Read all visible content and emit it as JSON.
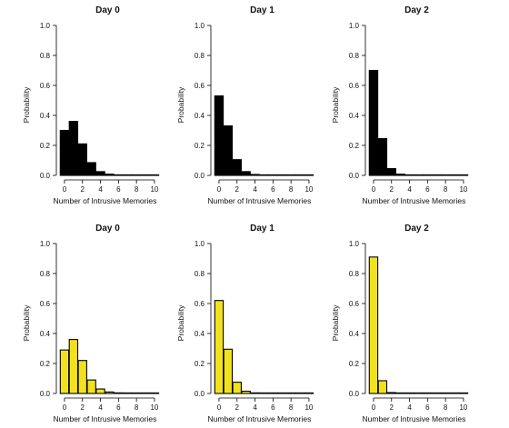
{
  "chart_data": [
    {
      "type": "bar",
      "title": "Day 0",
      "xlabel": "Number of Intrusive Memories",
      "ylabel": "Probability",
      "categories": [
        "0",
        "1",
        "2",
        "3",
        "4",
        "5",
        "6",
        "7",
        "8",
        "9",
        "10"
      ],
      "values": [
        0.3,
        0.36,
        0.21,
        0.085,
        0.025,
        0.008,
        0.003,
        0.002,
        0.001,
        0.001,
        0.001
      ],
      "x_ticks": [
        "0",
        "2",
        "4",
        "6",
        "8",
        "10"
      ],
      "y_ticks": [
        "0.0",
        "0.2",
        "0.4",
        "0.6",
        "0.8",
        "1.0"
      ],
      "ylim": [
        0,
        1
      ],
      "bar_color": "#000000"
    },
    {
      "type": "bar",
      "title": "Day 1",
      "xlabel": "Number of Intrusive Memories",
      "ylabel": "Probability",
      "categories": [
        "0",
        "1",
        "2",
        "3",
        "4",
        "5",
        "6",
        "7",
        "8",
        "9",
        "10"
      ],
      "values": [
        0.53,
        0.33,
        0.105,
        0.025,
        0.006,
        0.002,
        0.001,
        0.001,
        0.001,
        0.001,
        0.001
      ],
      "x_ticks": [
        "0",
        "2",
        "4",
        "6",
        "8",
        "10"
      ],
      "y_ticks": [
        "0.0",
        "0.2",
        "0.4",
        "0.6",
        "0.8",
        "1.0"
      ],
      "ylim": [
        0,
        1
      ],
      "bar_color": "#000000"
    },
    {
      "type": "bar",
      "title": "Day 2",
      "xlabel": "Number of Intrusive Memories",
      "ylabel": "Probability",
      "categories": [
        "0",
        "1",
        "2",
        "3",
        "4",
        "5",
        "6",
        "7",
        "8",
        "9",
        "10"
      ],
      "values": [
        0.7,
        0.245,
        0.045,
        0.008,
        0.002,
        0.001,
        0.001,
        0.001,
        0.001,
        0.001,
        0.001
      ],
      "x_ticks": [
        "0",
        "2",
        "4",
        "6",
        "8",
        "10"
      ],
      "y_ticks": [
        "0.0",
        "0.2",
        "0.4",
        "0.6",
        "0.8",
        "1.0"
      ],
      "ylim": [
        0,
        1
      ],
      "bar_color": "#000000"
    },
    {
      "type": "bar",
      "title": "Day 0",
      "xlabel": "Number of Intrusive Memories",
      "ylabel": "Probability",
      "categories": [
        "0",
        "1",
        "2",
        "3",
        "4",
        "5",
        "6",
        "7",
        "8",
        "9",
        "10"
      ],
      "values": [
        0.29,
        0.36,
        0.22,
        0.09,
        0.03,
        0.01,
        0.004,
        0.002,
        0.001,
        0.001,
        0.001
      ],
      "x_ticks": [
        "0",
        "2",
        "4",
        "6",
        "8",
        "10"
      ],
      "y_ticks": [
        "0.0",
        "0.2",
        "0.4",
        "0.6",
        "0.8",
        "1.0"
      ],
      "ylim": [
        0,
        1
      ],
      "bar_color": "#f2e21d"
    },
    {
      "type": "bar",
      "title": "Day 1",
      "xlabel": "Number of Intrusive Memories",
      "ylabel": "Probability",
      "categories": [
        "0",
        "1",
        "2",
        "3",
        "4",
        "5",
        "6",
        "7",
        "8",
        "9",
        "10"
      ],
      "values": [
        0.62,
        0.295,
        0.075,
        0.015,
        0.004,
        0.001,
        0.001,
        0.001,
        0.001,
        0.001,
        0.001
      ],
      "x_ticks": [
        "0",
        "2",
        "4",
        "6",
        "8",
        "10"
      ],
      "y_ticks": [
        "0.0",
        "0.2",
        "0.4",
        "0.6",
        "0.8",
        "1.0"
      ],
      "ylim": [
        0,
        1
      ],
      "bar_color": "#f2e21d"
    },
    {
      "type": "bar",
      "title": "Day 2",
      "xlabel": "Number of Intrusive Memories",
      "ylabel": "Probability",
      "categories": [
        "0",
        "1",
        "2",
        "3",
        "4",
        "5",
        "6",
        "7",
        "8",
        "9",
        "10"
      ],
      "values": [
        0.91,
        0.085,
        0.006,
        0.002,
        0.001,
        0.001,
        0.001,
        0.001,
        0.001,
        0.001,
        0.001
      ],
      "x_ticks": [
        "0",
        "2",
        "4",
        "6",
        "8",
        "10"
      ],
      "y_ticks": [
        "0.0",
        "0.2",
        "0.4",
        "0.6",
        "0.8",
        "1.0"
      ],
      "ylim": [
        0,
        1
      ],
      "bar_color": "#f2e21d"
    }
  ]
}
